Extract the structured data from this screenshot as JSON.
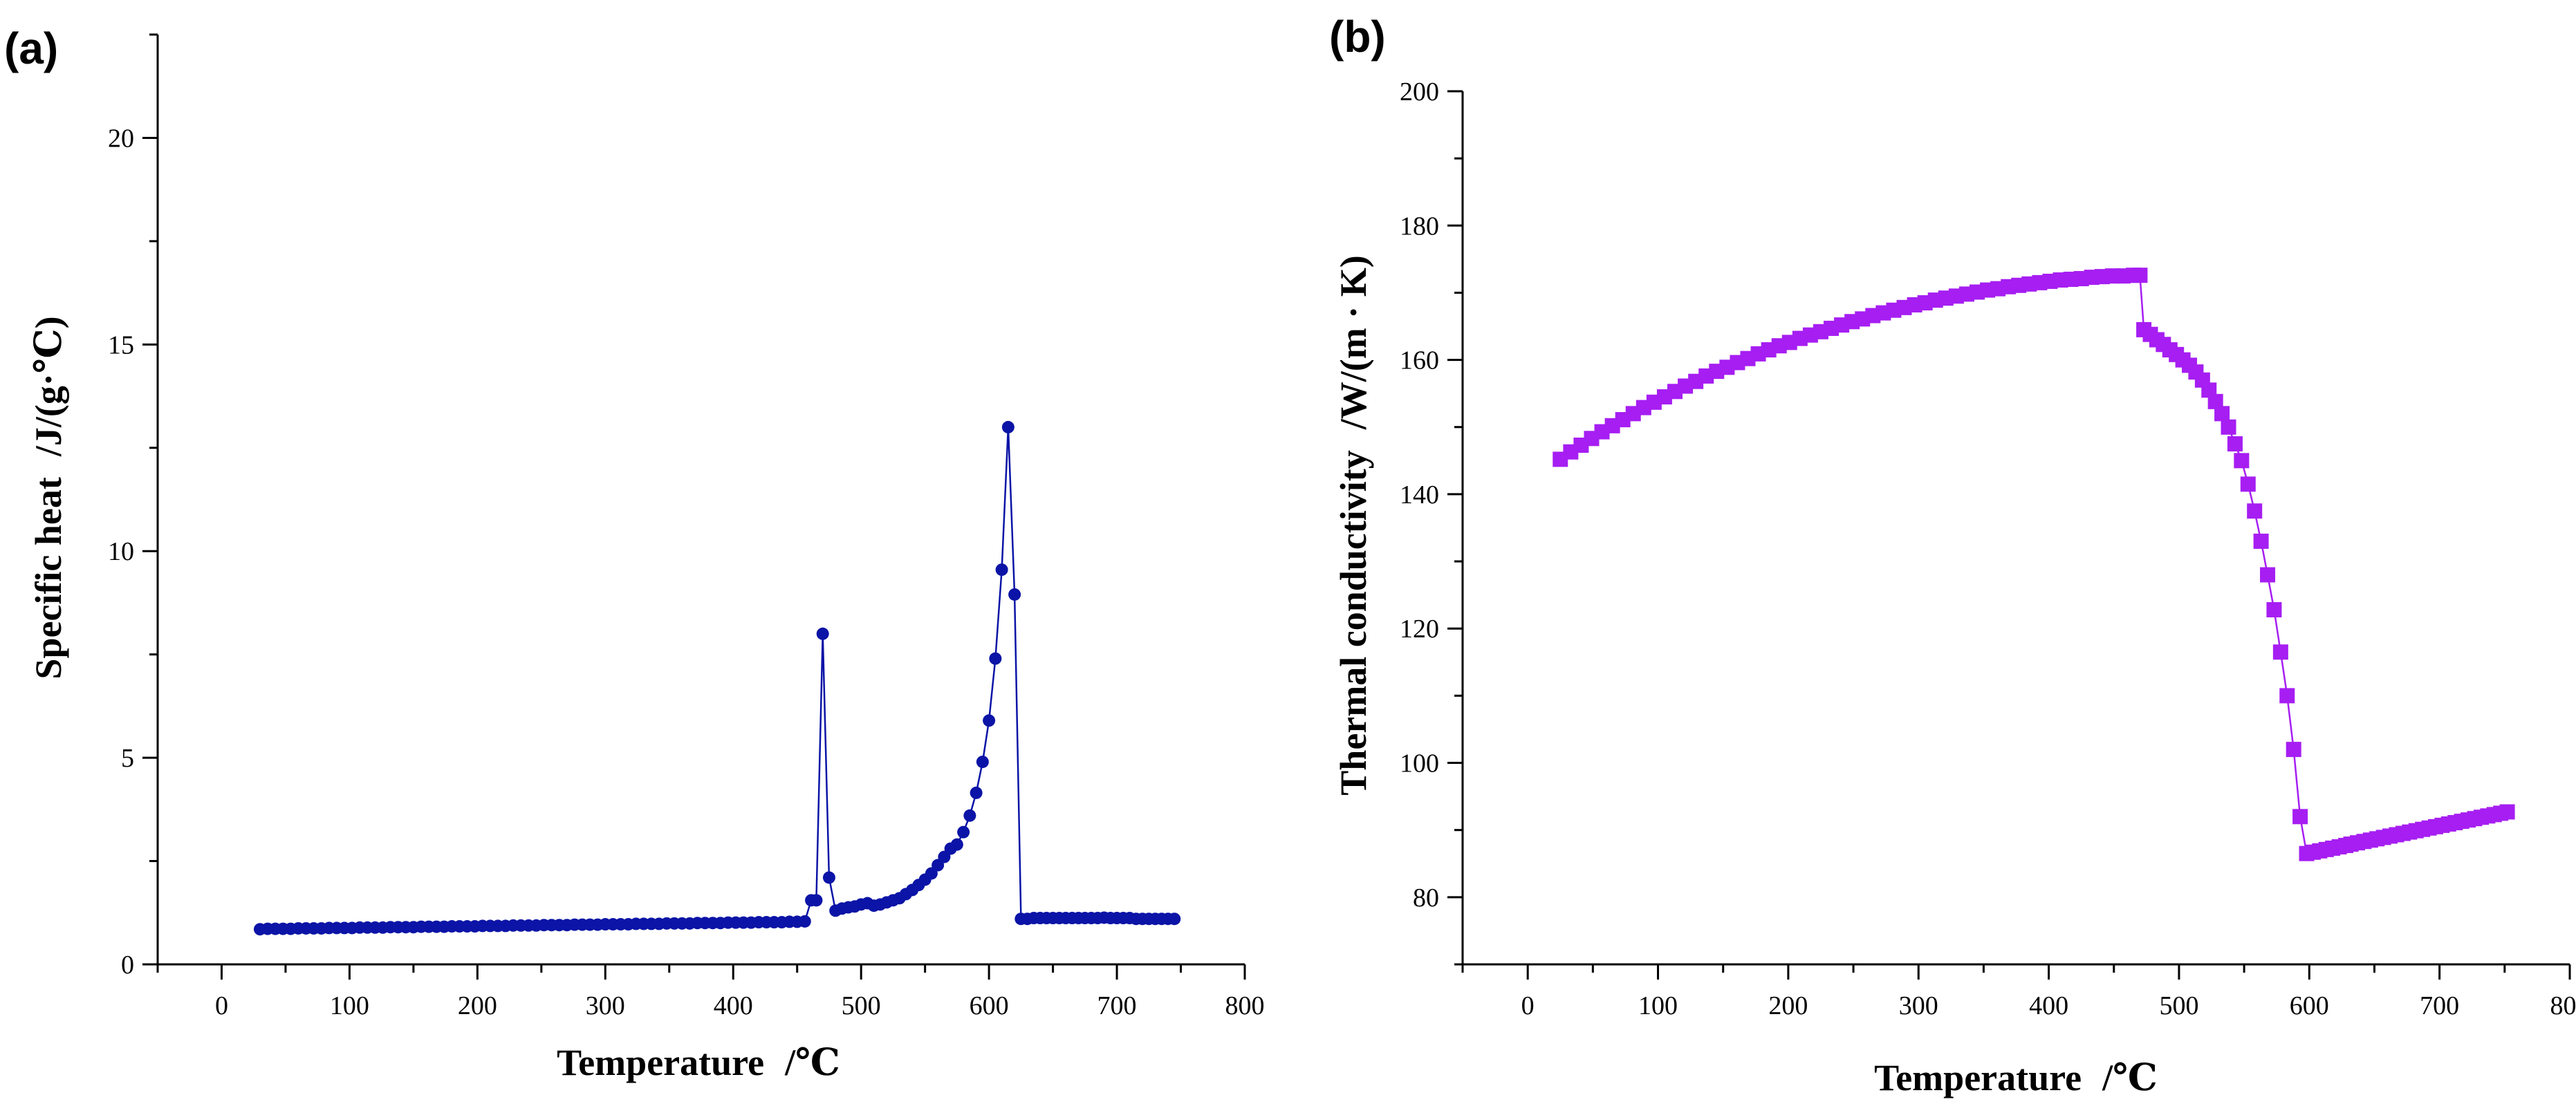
{
  "chart_data": [
    {
      "panel": "(a)",
      "type": "line",
      "marker": "circle",
      "color": "#0b14a6",
      "xlabel": "Temperature",
      "xunit": "/℃",
      "ylabel": "Specific heat",
      "yunit": "/J/(g·℃)",
      "xlim": [
        -50,
        800
      ],
      "ylim": [
        0,
        22.5
      ],
      "xticks": [
        0,
        100,
        200,
        300,
        400,
        500,
        600,
        700,
        800
      ],
      "yticks": [
        0,
        5,
        10,
        15,
        20
      ],
      "series": [
        {
          "name": "Specific heat",
          "x": [
            30,
            36,
            42,
            48,
            54,
            60,
            66,
            72,
            78,
            84,
            90,
            96,
            102,
            108,
            114,
            120,
            126,
            132,
            138,
            144,
            150,
            156,
            162,
            168,
            174,
            180,
            186,
            192,
            198,
            204,
            210,
            216,
            222,
            228,
            234,
            240,
            246,
            252,
            258,
            264,
            270,
            276,
            282,
            288,
            294,
            300,
            306,
            312,
            318,
            324,
            330,
            336,
            342,
            348,
            354,
            360,
            366,
            372,
            378,
            384,
            390,
            396,
            402,
            408,
            414,
            420,
            426,
            432,
            438,
            444,
            450,
            456,
            461,
            465,
            470,
            475,
            480,
            485,
            490,
            495,
            500,
            505,
            510,
            515,
            520,
            525,
            530,
            535,
            540,
            545,
            550,
            555,
            560,
            565,
            570,
            575,
            580,
            585,
            590,
            595,
            600,
            605,
            610,
            615,
            620,
            625,
            630,
            635,
            640,
            645,
            650,
            655,
            660,
            665,
            670,
            675,
            680,
            685,
            690,
            695,
            700,
            705,
            710,
            715,
            720,
            725,
            730,
            735,
            740,
            745
          ],
          "y": [
            0.85,
            0.86,
            0.86,
            0.86,
            0.86,
            0.87,
            0.87,
            0.87,
            0.87,
            0.88,
            0.88,
            0.88,
            0.88,
            0.89,
            0.89,
            0.89,
            0.89,
            0.9,
            0.9,
            0.9,
            0.9,
            0.91,
            0.91,
            0.91,
            0.91,
            0.92,
            0.92,
            0.92,
            0.92,
            0.93,
            0.93,
            0.93,
            0.93,
            0.94,
            0.94,
            0.94,
            0.94,
            0.95,
            0.95,
            0.95,
            0.95,
            0.96,
            0.96,
            0.96,
            0.96,
            0.97,
            0.97,
            0.97,
            0.97,
            0.98,
            0.98,
            0.98,
            0.98,
            0.99,
            0.99,
            0.99,
            0.99,
            1.0,
            1.0,
            1.0,
            1.0,
            1.01,
            1.01,
            1.01,
            1.01,
            1.02,
            1.02,
            1.02,
            1.02,
            1.03,
            1.03,
            1.04,
            1.55,
            1.55,
            8.0,
            2.1,
            1.3,
            1.35,
            1.38,
            1.4,
            1.45,
            1.48,
            1.42,
            1.45,
            1.5,
            1.55,
            1.6,
            1.7,
            1.8,
            1.92,
            2.05,
            2.2,
            2.4,
            2.6,
            2.8,
            2.9,
            3.2,
            3.6,
            4.15,
            4.9,
            5.9,
            7.4,
            9.55,
            13.0,
            8.95,
            1.1,
            1.1,
            1.12,
            1.12,
            1.12,
            1.12,
            1.12,
            1.12,
            1.12,
            1.12,
            1.12,
            1.12,
            1.12,
            1.13,
            1.12,
            1.12,
            1.12,
            1.12,
            1.1,
            1.1,
            1.1,
            1.1,
            1.1,
            1.1,
            1.1
          ]
        }
      ]
    },
    {
      "panel": "(b)",
      "type": "line",
      "marker": "square",
      "color": "#a61ef2",
      "xlabel": "Temperature",
      "xunit": "/℃",
      "ylabel": "Thermal conductivity",
      "yunit": "/W/(m · K)",
      "xlim": [
        -50,
        800
      ],
      "ylim": [
        70,
        200
      ],
      "xticks": [
        0,
        100,
        200,
        300,
        400,
        500,
        600,
        700,
        800
      ],
      "yticks": [
        80,
        100,
        120,
        140,
        160,
        180,
        200
      ],
      "series": [
        {
          "name": "Thermal conductivity",
          "x": [
            25,
            33,
            41,
            49,
            57,
            65,
            73,
            81,
            89,
            97,
            105,
            113,
            121,
            129,
            137,
            145,
            153,
            161,
            169,
            177,
            185,
            193,
            201,
            209,
            217,
            225,
            233,
            241,
            249,
            257,
            265,
            273,
            281,
            289,
            297,
            305,
            313,
            321,
            329,
            337,
            345,
            353,
            361,
            369,
            377,
            385,
            393,
            401,
            409,
            417,
            425,
            433,
            441,
            449,
            457,
            465,
            470,
            473,
            478,
            483,
            488,
            493,
            498,
            503,
            508,
            513,
            518,
            523,
            528,
            533,
            538,
            543,
            548,
            553,
            558,
            563,
            568,
            573,
            578,
            583,
            588,
            593,
            598,
            603,
            608,
            613,
            618,
            623,
            628,
            632,
            637,
            642,
            647,
            652,
            657,
            662,
            667,
            672,
            677,
            682,
            687,
            692,
            697,
            702,
            707,
            712,
            717,
            722,
            727,
            732,
            737,
            742,
            747,
            752
          ],
          "y": [
            145.2,
            146.3,
            147.3,
            148.3,
            149.3,
            150.2,
            151.1,
            152.0,
            152.9,
            153.7,
            154.5,
            155.3,
            156.1,
            156.8,
            157.6,
            158.3,
            158.9,
            159.6,
            160.2,
            160.9,
            161.5,
            162.1,
            162.6,
            163.2,
            163.7,
            164.2,
            164.7,
            165.2,
            165.7,
            166.1,
            166.6,
            167.0,
            167.4,
            167.8,
            168.2,
            168.5,
            168.9,
            169.2,
            169.5,
            169.8,
            170.1,
            170.4,
            170.6,
            170.9,
            171.1,
            171.3,
            171.5,
            171.7,
            171.9,
            172.0,
            172.1,
            172.3,
            172.4,
            172.5,
            172.5,
            172.6,
            172.6,
            164.5,
            163.8,
            163.0,
            162.3,
            161.5,
            160.8,
            160.0,
            159.2,
            158.2,
            157.0,
            155.5,
            153.8,
            152.0,
            150.0,
            147.5,
            145.0,
            141.5,
            137.5,
            133.0,
            128.0,
            122.8,
            116.5,
            110.0,
            102.0,
            92.0,
            86.5,
            86.7,
            86.9,
            87.1,
            87.3,
            87.5,
            87.7,
            87.9,
            88.1,
            88.3,
            88.5,
            88.7,
            88.9,
            89.1,
            89.3,
            89.5,
            89.7,
            89.9,
            90.1,
            90.3,
            90.5,
            90.7,
            90.9,
            91.1,
            91.3,
            91.5,
            91.7,
            91.9,
            92.1,
            92.3,
            92.5,
            92.7
          ]
        }
      ]
    }
  ]
}
